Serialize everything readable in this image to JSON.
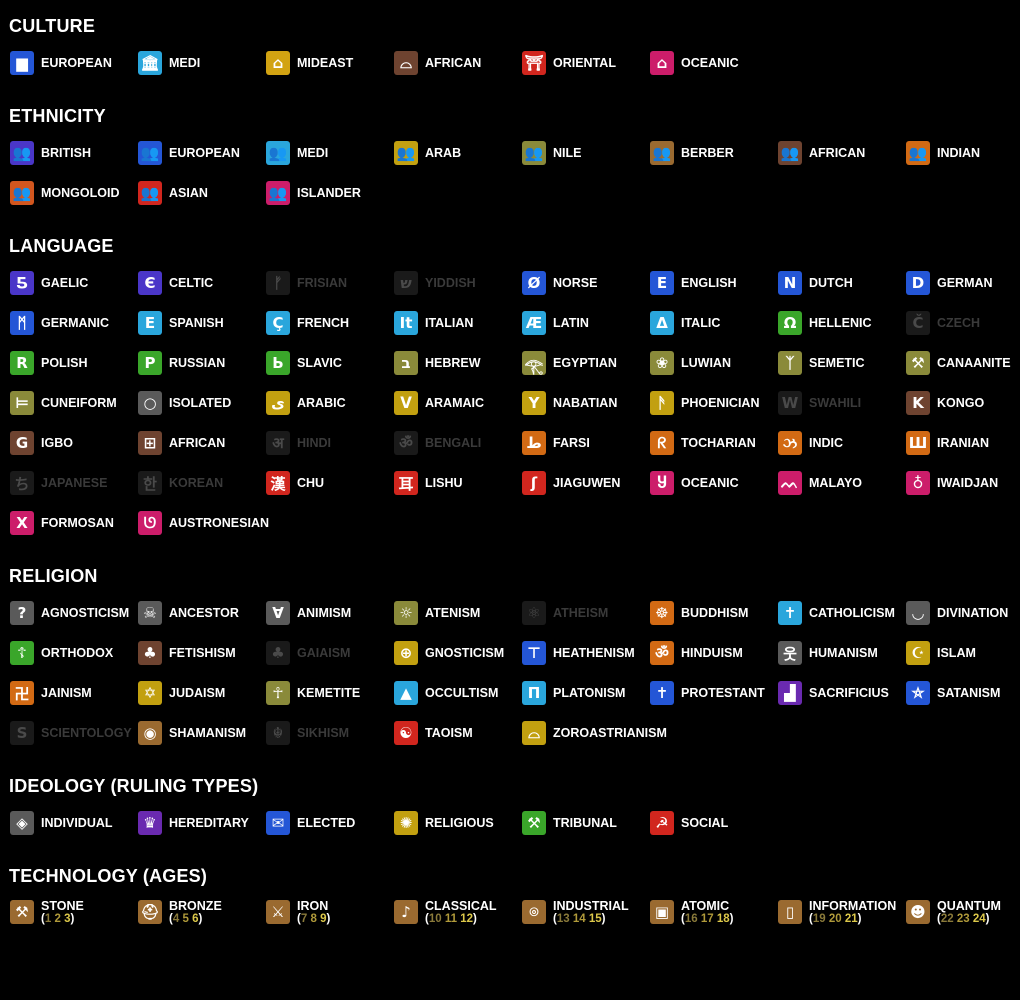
{
  "sections": [
    {
      "title": "CULTURE",
      "items": [
        {
          "label": "EUROPEAN",
          "icon": "culture-european-icon",
          "glyph": "▆",
          "color": "#2456d6"
        },
        {
          "label": "MEDI",
          "icon": "culture-medi-icon",
          "glyph": "🏛",
          "color": "#2aa6dc"
        },
        {
          "label": "MIDEAST",
          "icon": "culture-mideast-icon",
          "glyph": "⌂",
          "color": "#d2a312"
        },
        {
          "label": "AFRICAN",
          "icon": "culture-african-icon",
          "glyph": "⌓",
          "color": "#6e4330"
        },
        {
          "label": "ORIENTAL",
          "icon": "culture-oriental-icon",
          "glyph": "⛩",
          "color": "#d1261e"
        },
        {
          "label": "OCEANIC",
          "icon": "culture-oceanic-icon",
          "glyph": "⌂",
          "color": "#cc1d6a"
        }
      ]
    },
    {
      "title": "ETHNICITY",
      "items": [
        {
          "label": "BRITISH",
          "icon": "people-icon",
          "glyph": "👥",
          "color": "#4a36c8"
        },
        {
          "label": "EUROPEAN",
          "icon": "people-icon",
          "glyph": "👥",
          "color": "#2456d6"
        },
        {
          "label": "MEDI",
          "icon": "people-icon",
          "glyph": "👥",
          "color": "#2aa6dc"
        },
        {
          "label": "ARAB",
          "icon": "people-icon",
          "glyph": "👥",
          "color": "#c2a010"
        },
        {
          "label": "NILE",
          "icon": "people-icon",
          "glyph": "👥",
          "color": "#8a8a3a"
        },
        {
          "label": "BERBER",
          "icon": "people-icon",
          "glyph": "👥",
          "color": "#9a6a30"
        },
        {
          "label": "AFRICAN",
          "icon": "people-icon",
          "glyph": "👥",
          "color": "#6e4330"
        },
        {
          "label": "INDIAN",
          "icon": "people-icon",
          "glyph": "👥",
          "color": "#d26a14"
        },
        {
          "label": "MONGOLOID",
          "icon": "people-icon",
          "glyph": "👥",
          "color": "#d2561e"
        },
        {
          "label": "ASIAN",
          "icon": "people-icon",
          "glyph": "👥",
          "color": "#d1261e"
        },
        {
          "label": "ISLANDER",
          "icon": "people-icon",
          "glyph": "👥",
          "color": "#cc1d6a"
        }
      ]
    },
    {
      "title": "LANGUAGE",
      "items": [
        {
          "label": "GAELIC",
          "icon": "gaelic-letter-icon",
          "glyph": "Ƽ",
          "color": "#4a36c8"
        },
        {
          "label": "CELTIC",
          "icon": "celtic-letter-icon",
          "glyph": "Є",
          "color": "#4a36c8"
        },
        {
          "label": "FRISIAN",
          "icon": "frisian-rune-icon",
          "glyph": "ᚠ",
          "color": "#1a1a1a",
          "muted": true
        },
        {
          "label": "YIDDISH",
          "icon": "yiddish-letter-icon",
          "glyph": "ש",
          "color": "#1a1a1a",
          "muted": true
        },
        {
          "label": "NORSE",
          "icon": "norse-letter-icon",
          "glyph": "Ø",
          "color": "#2456d6"
        },
        {
          "label": "ENGLISH",
          "icon": "english-letter-icon",
          "glyph": "E",
          "color": "#2456d6"
        },
        {
          "label": "DUTCH",
          "icon": "dutch-letter-icon",
          "glyph": "N",
          "color": "#2456d6"
        },
        {
          "label": "GERMAN",
          "icon": "german-letter-icon",
          "glyph": "D",
          "color": "#2456d6"
        },
        {
          "label": "GERMANIC",
          "icon": "germanic-letter-icon",
          "glyph": "ᛗ",
          "color": "#2456d6"
        },
        {
          "label": "SPANISH",
          "icon": "spanish-letter-icon",
          "glyph": "E",
          "color": "#2aa6dc"
        },
        {
          "label": "FRENCH",
          "icon": "french-letter-icon",
          "glyph": "Ç",
          "color": "#2aa6dc"
        },
        {
          "label": "ITALIAN",
          "icon": "italian-letter-icon",
          "glyph": "It",
          "color": "#2aa6dc"
        },
        {
          "label": "LATIN",
          "icon": "latin-letter-icon",
          "glyph": "Æ",
          "color": "#2aa6dc"
        },
        {
          "label": "ITALIC",
          "icon": "italic-letter-icon",
          "glyph": "Δ",
          "color": "#2aa6dc"
        },
        {
          "label": "HELLENIC",
          "icon": "hellenic-letter-icon",
          "glyph": "Ω",
          "color": "#3aa62a"
        },
        {
          "label": "CZECH",
          "icon": "czech-letter-icon",
          "glyph": "Č",
          "color": "#1a1a1a",
          "muted": true
        },
        {
          "label": "POLISH",
          "icon": "polish-letter-icon",
          "glyph": "R",
          "color": "#3aa62a"
        },
        {
          "label": "RUSSIAN",
          "icon": "russian-letter-icon",
          "glyph": "Р",
          "color": "#3aa62a"
        },
        {
          "label": "SLAVIC",
          "icon": "slavic-letter-icon",
          "glyph": "Ь",
          "color": "#3aa62a"
        },
        {
          "label": "HEBREW",
          "icon": "hebrew-letter-icon",
          "glyph": "ב",
          "color": "#8a8a3a"
        },
        {
          "label": "EGYPTIAN",
          "icon": "egyptian-glyph-icon",
          "glyph": "𓂀",
          "color": "#8a8a3a"
        },
        {
          "label": "LUWIAN",
          "icon": "luwian-glyph-icon",
          "glyph": "❀",
          "color": "#8a8a3a"
        },
        {
          "label": "SEMETIC",
          "icon": "semetic-glyph-icon",
          "glyph": "ᛉ",
          "color": "#8a8a3a"
        },
        {
          "label": "CANAANITE",
          "icon": "canaanite-glyph-icon",
          "glyph": "⚒",
          "color": "#8a8a3a"
        },
        {
          "label": "CUNEIFORM",
          "icon": "cuneiform-glyph-icon",
          "glyph": "⊨",
          "color": "#8a8a3a"
        },
        {
          "label": "ISOLATED",
          "icon": "isolated-circle-icon",
          "glyph": "○",
          "color": "#5a5a5a"
        },
        {
          "label": "ARABIC",
          "icon": "arabic-letter-icon",
          "glyph": "ى",
          "color": "#c2a010"
        },
        {
          "label": "ARAMAIC",
          "icon": "aramaic-letter-icon",
          "glyph": "ᐯ",
          "color": "#c2a010"
        },
        {
          "label": "NABATIAN",
          "icon": "nabatian-letter-icon",
          "glyph": "Y",
          "color": "#c2a010"
        },
        {
          "label": "PHOENICIAN",
          "icon": "phoenician-letter-icon",
          "glyph": "ᚫ",
          "color": "#c2a010"
        },
        {
          "label": "SWAHILI",
          "icon": "swahili-letter-icon",
          "glyph": "W",
          "color": "#1a1a1a",
          "muted": true
        },
        {
          "label": "KONGO",
          "icon": "kongo-letter-icon",
          "glyph": "K",
          "color": "#6e4330"
        },
        {
          "label": "IGBO",
          "icon": "igbo-letter-icon",
          "glyph": "G",
          "color": "#6e4330"
        },
        {
          "label": "AFRICAN",
          "icon": "african-glyph-icon",
          "glyph": "⊞",
          "color": "#6e4330"
        },
        {
          "label": "HINDI",
          "icon": "hindi-letter-icon",
          "glyph": "अ",
          "color": "#1a1a1a",
          "muted": true
        },
        {
          "label": "BENGALI",
          "icon": "bengali-letter-icon",
          "glyph": "ॐ",
          "color": "#1a1a1a",
          "muted": true
        },
        {
          "label": "FARSI",
          "icon": "farsi-letter-icon",
          "glyph": "ط",
          "color": "#d26a14"
        },
        {
          "label": "TOCHARIAN",
          "icon": "tocharian-glyph-icon",
          "glyph": "ᖇ",
          "color": "#d26a14"
        },
        {
          "label": "INDIC",
          "icon": "indic-glyph-icon",
          "glyph": "ઝ",
          "color": "#d26a14"
        },
        {
          "label": "IRANIAN",
          "icon": "iranian-glyph-icon",
          "glyph": "Ш",
          "color": "#d26a14"
        },
        {
          "label": "JAPANESE",
          "icon": "japanese-letter-icon",
          "glyph": "ち",
          "color": "#1a1a1a",
          "muted": true
        },
        {
          "label": "KOREAN",
          "icon": "korean-letter-icon",
          "glyph": "한",
          "color": "#1a1a1a",
          "muted": true
        },
        {
          "label": "CHU",
          "icon": "chu-letter-icon",
          "glyph": "漢",
          "color": "#d1261e"
        },
        {
          "label": "LISHU",
          "icon": "lishu-glyph-icon",
          "glyph": "耳",
          "color": "#d1261e"
        },
        {
          "label": "JIAGUWEN",
          "icon": "jiaguwen-glyph-icon",
          "glyph": "ʃ",
          "color": "#d1261e"
        },
        {
          "label": "OCEANIC",
          "icon": "oceanic-glyph-icon",
          "glyph": "Ⴘ",
          "color": "#cc1d6a"
        },
        {
          "label": "MALAYO",
          "icon": "malayo-glyph-icon",
          "glyph": "ᨓ",
          "color": "#cc1d6a"
        },
        {
          "label": "IWAIDJAN",
          "icon": "iwaidjan-glyph-icon",
          "glyph": "♁",
          "color": "#cc1d6a"
        },
        {
          "label": "FORMOSAN",
          "icon": "formosan-glyph-icon",
          "glyph": "X",
          "color": "#cc1d6a"
        },
        {
          "label": "AUSTRONESIAN",
          "icon": "austronesian-glyph-icon",
          "glyph": "ᘎ",
          "color": "#cc1d6a"
        }
      ]
    },
    {
      "title": "RELIGION",
      "items": [
        {
          "label": "AGNOSTICISM",
          "icon": "question-mark-icon",
          "glyph": "?",
          "color": "#5a5a5a"
        },
        {
          "label": "ANCESTOR",
          "icon": "skull-icon",
          "glyph": "☠",
          "color": "#5a5a5a"
        },
        {
          "label": "ANIMISM",
          "icon": "animism-icon",
          "glyph": "∀",
          "color": "#5a5a5a"
        },
        {
          "label": "ATENISM",
          "icon": "sun-disk-icon",
          "glyph": "☼",
          "color": "#8a8a3a"
        },
        {
          "label": "ATHEISM",
          "icon": "atheism-icon",
          "glyph": "⚛",
          "color": "#1a1a1a",
          "muted": true
        },
        {
          "label": "BUDDHISM",
          "icon": "dharma-wheel-icon",
          "glyph": "☸",
          "color": "#d26a14"
        },
        {
          "label": "CATHOLICISM",
          "icon": "cross-icon",
          "glyph": "✝",
          "color": "#2aa6dc"
        },
        {
          "label": "DIVINATION",
          "icon": "divination-icon",
          "glyph": "◡",
          "color": "#5a5a5a"
        },
        {
          "label": "ORTHODOX",
          "icon": "orthodox-cross-icon",
          "glyph": "☦",
          "color": "#3aa62a"
        },
        {
          "label": "FETISHISM",
          "icon": "fetish-icon",
          "glyph": "♣",
          "color": "#6e4330"
        },
        {
          "label": "GAIAISM",
          "icon": "tree-icon",
          "glyph": "♣",
          "color": "#1a1a1a",
          "muted": true
        },
        {
          "label": "GNOSTICISM",
          "icon": "gnostic-cross-icon",
          "glyph": "⊕",
          "color": "#c2a010"
        },
        {
          "label": "HEATHENISM",
          "icon": "hammer-icon",
          "glyph": "⊤",
          "color": "#2456d6"
        },
        {
          "label": "HINDUISM",
          "icon": "om-icon",
          "glyph": "ॐ",
          "color": "#d26a14"
        },
        {
          "label": "HUMANISM",
          "icon": "human-icon",
          "glyph": "웃",
          "color": "#5a5a5a"
        },
        {
          "label": "ISLAM",
          "icon": "crescent-icon",
          "glyph": "☪",
          "color": "#c2a010"
        },
        {
          "label": "JAINISM",
          "icon": "swastika-icon",
          "glyph": "卍",
          "color": "#d26a14"
        },
        {
          "label": "JUDAISM",
          "icon": "star-of-david-icon",
          "glyph": "✡",
          "color": "#c2a010"
        },
        {
          "label": "KEMETITE",
          "icon": "ankh-icon",
          "glyph": "☥",
          "color": "#8a8a3a"
        },
        {
          "label": "OCCULTISM",
          "icon": "pyramid-icon",
          "glyph": "▲",
          "color": "#2aa6dc"
        },
        {
          "label": "PLATONISM",
          "icon": "pillar-icon",
          "glyph": "Π",
          "color": "#2aa6dc"
        },
        {
          "label": "PROTESTANT",
          "icon": "cross-icon",
          "glyph": "✝",
          "color": "#2456d6"
        },
        {
          "label": "SACRIFICIUS",
          "icon": "ziggurat-icon",
          "glyph": "▟",
          "color": "#6a2ab0"
        },
        {
          "label": "SATANISM",
          "icon": "pentagram-icon",
          "glyph": "⛤",
          "color": "#2456d6"
        },
        {
          "label": "SCIENTOLOGY",
          "icon": "scientology-icon",
          "glyph": "S",
          "color": "#1a1a1a",
          "muted": true
        },
        {
          "label": "SHAMANISM",
          "icon": "eye-icon",
          "glyph": "◉",
          "color": "#9a6a30"
        },
        {
          "label": "SIKHISM",
          "icon": "khanda-icon",
          "glyph": "☬",
          "color": "#1a1a1a",
          "muted": true
        },
        {
          "label": "TAOISM",
          "icon": "yin-yang-icon",
          "glyph": "☯",
          "color": "#d1261e"
        },
        {
          "label": "ZOROASTRIANISM",
          "icon": "faravahar-icon",
          "glyph": "⌓",
          "color": "#c2a010"
        }
      ]
    },
    {
      "title": "IDEOLOGY (RULING TYPES)",
      "items": [
        {
          "label": "INDIVIDUAL",
          "icon": "individual-icon",
          "glyph": "◈",
          "color": "#5a5a5a"
        },
        {
          "label": "HEREDITARY",
          "icon": "crown-icon",
          "glyph": "♛",
          "color": "#6a2ab0"
        },
        {
          "label": "ELECTED",
          "icon": "ballot-icon",
          "glyph": "✉",
          "color": "#2456d6"
        },
        {
          "label": "RELIGIOUS",
          "icon": "sunburst-icon",
          "glyph": "✺",
          "color": "#c2a010"
        },
        {
          "label": "TRIBUNAL",
          "icon": "gavel-icon",
          "glyph": "⚒",
          "color": "#3aa62a"
        },
        {
          "label": "SOCIAL",
          "icon": "hammer-sickle-icon",
          "glyph": "☭",
          "color": "#d1261e"
        }
      ]
    }
  ],
  "technology": {
    "title": "TECHNOLOGY (AGES)",
    "items": [
      {
        "label": "STONE",
        "ages": [
          "1",
          "2",
          "3"
        ],
        "icon": "stone-tool-icon",
        "glyph": "⚒",
        "color": "#9a6a30"
      },
      {
        "label": "BRONZE",
        "ages": [
          "4",
          "5",
          "6"
        ],
        "icon": "helmet-icon",
        "glyph": "⛑",
        "color": "#9a6a30"
      },
      {
        "label": "IRON",
        "ages": [
          "7",
          "8",
          "9"
        ],
        "icon": "sword-icon",
        "glyph": "⚔",
        "color": "#9a6a30"
      },
      {
        "label": "CLASSICAL",
        "ages": [
          "10",
          "11",
          "12"
        ],
        "icon": "lyre-icon",
        "glyph": "♪",
        "color": "#9a6a30"
      },
      {
        "label": "INDUSTRIAL",
        "ages": [
          "13",
          "14",
          "15"
        ],
        "icon": "lightbulb-icon",
        "glyph": "⌾",
        "color": "#9a6a30"
      },
      {
        "label": "ATOMIC",
        "ages": [
          "16",
          "17",
          "18"
        ],
        "icon": "tv-icon",
        "glyph": "▣",
        "color": "#9a6a30"
      },
      {
        "label": "INFORMATION",
        "ages": [
          "19",
          "20",
          "21"
        ],
        "icon": "phone-icon",
        "glyph": "▯",
        "color": "#9a6a30"
      },
      {
        "label": "QUANTUM",
        "ages": [
          "22",
          "23",
          "24"
        ],
        "icon": "quantum-icon",
        "glyph": "☻",
        "color": "#9a6a30"
      }
    ]
  }
}
